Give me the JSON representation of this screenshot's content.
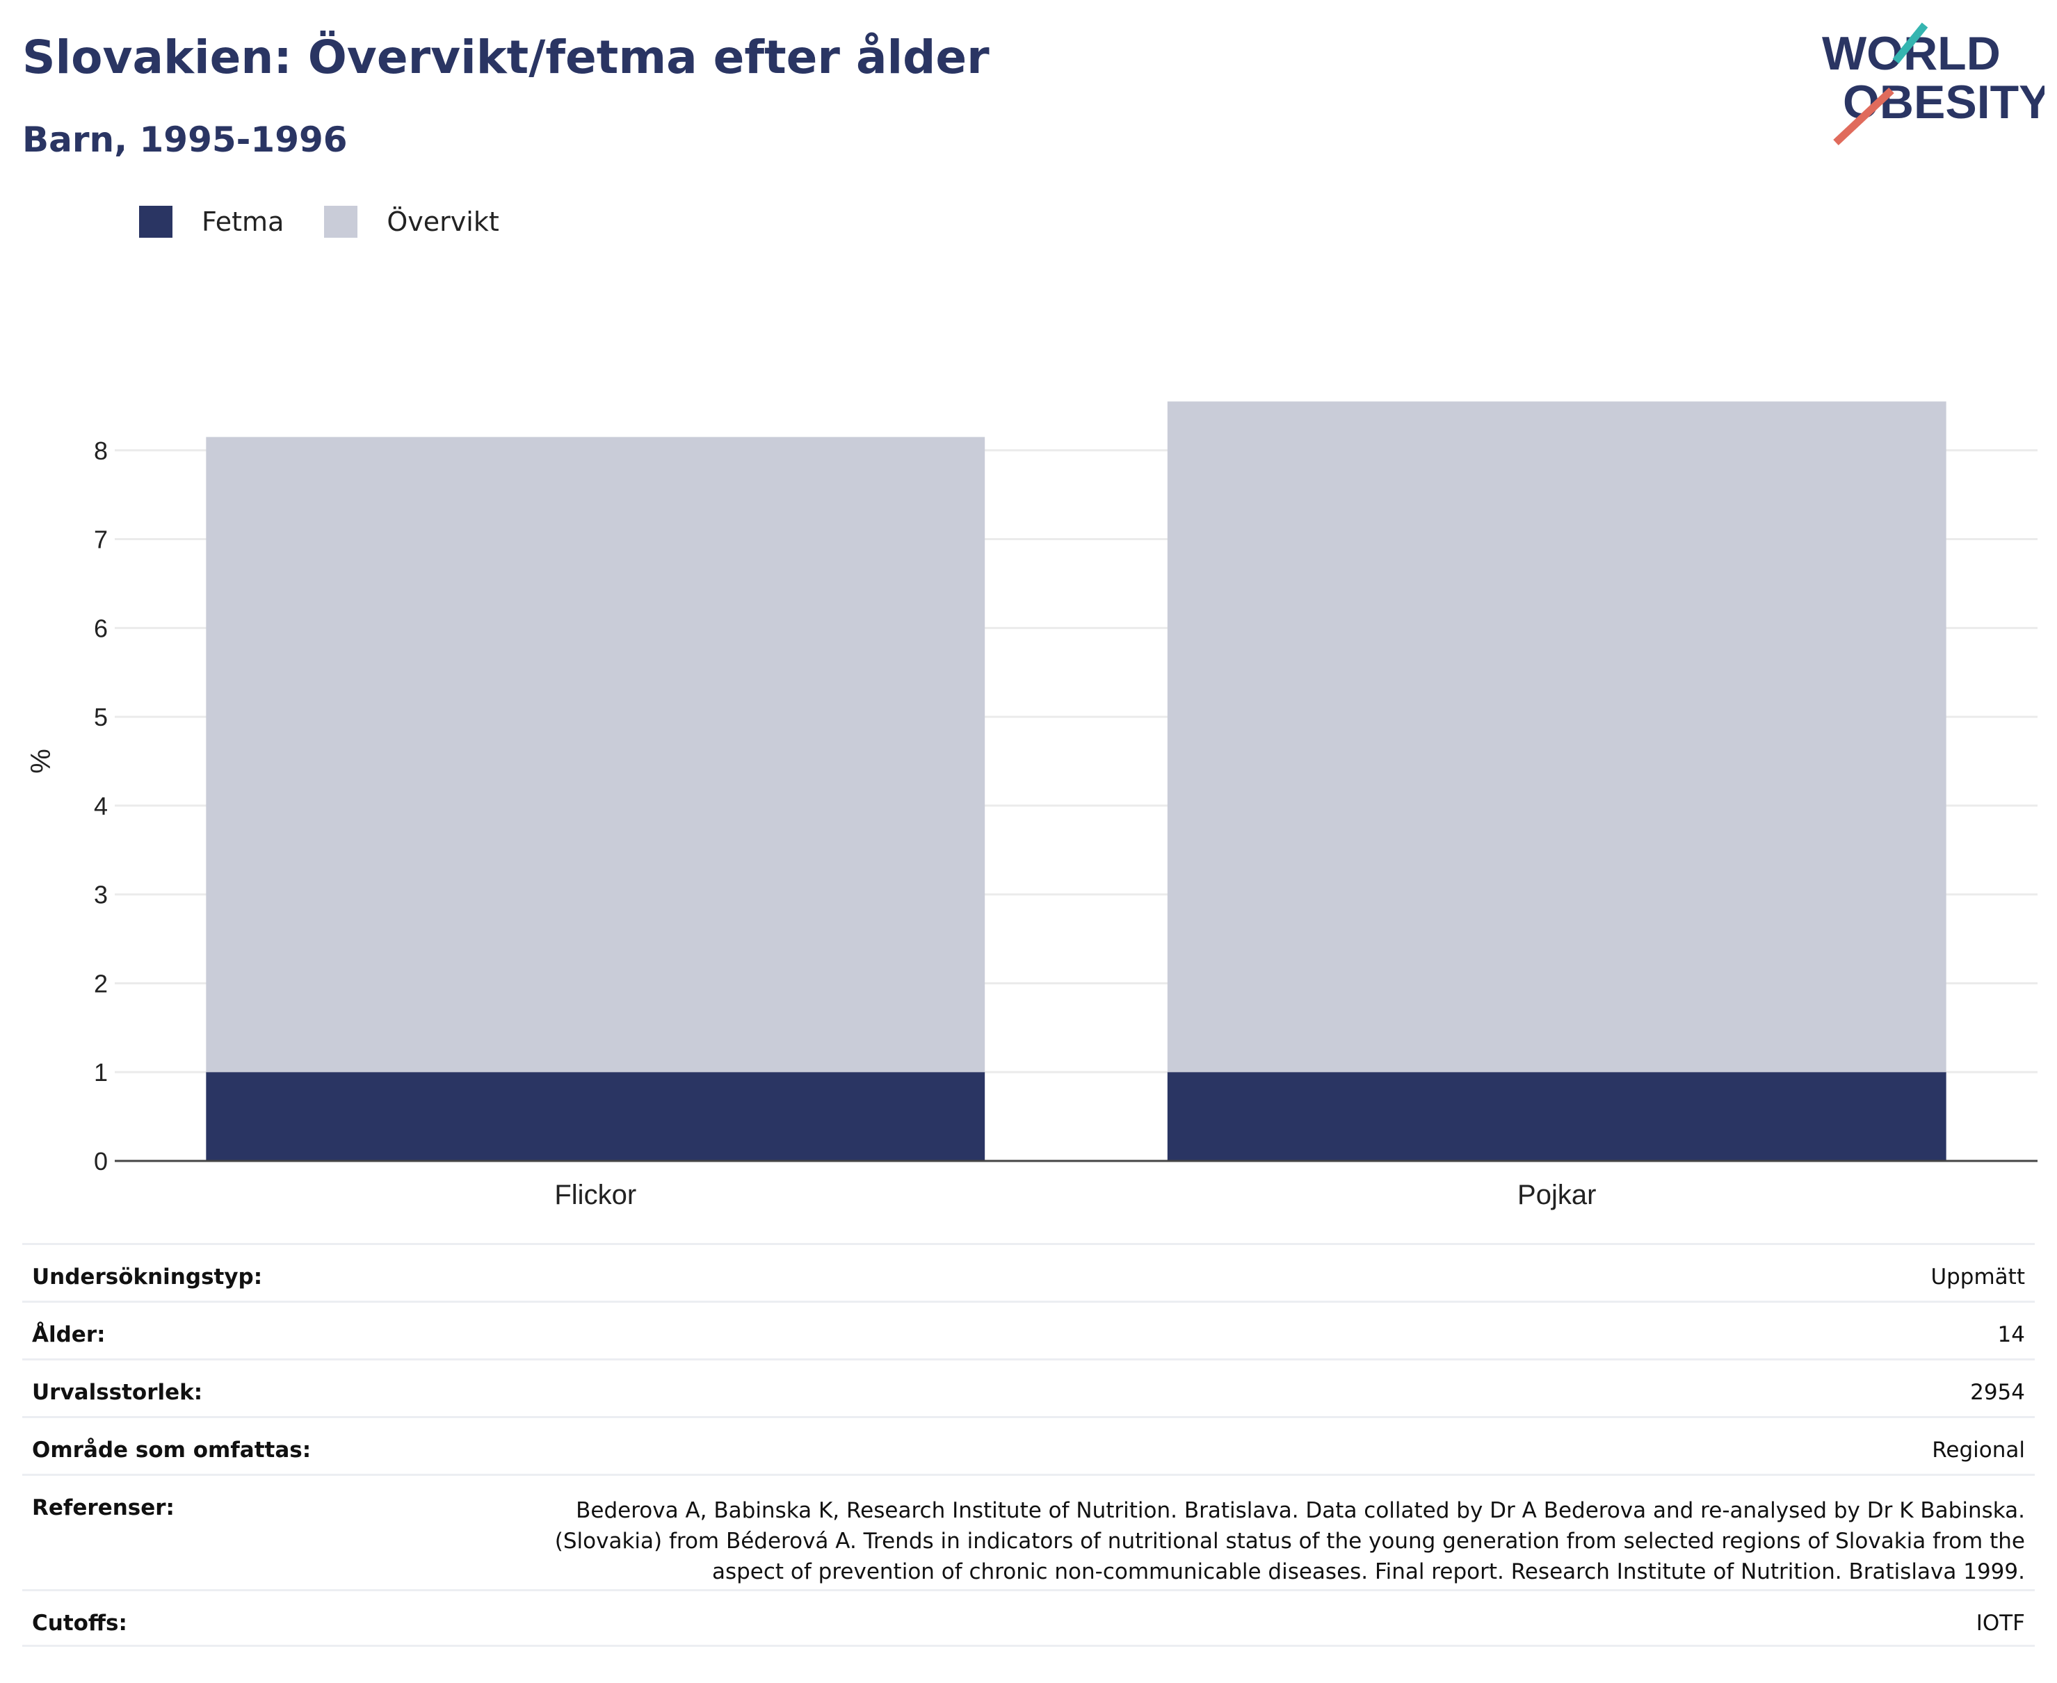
{
  "header": {
    "title": "Slovakien: Övervikt/fetma efter ålder",
    "subtitle": "Barn, 1995-1996"
  },
  "logo": {
    "line1": "WORLD",
    "line2": "OBESITY"
  },
  "legend": [
    {
      "label": "Fetma",
      "color": "#2a3563"
    },
    {
      "label": "Övervikt",
      "color": "#c9ccd8"
    }
  ],
  "chart_data": {
    "type": "bar",
    "stacked": true,
    "categories": [
      "Flickor",
      "Pojkar"
    ],
    "series": [
      {
        "name": "Fetma",
        "color": "#2a3563",
        "values": [
          1.0,
          1.0
        ]
      },
      {
        "name": "Övervikt",
        "color": "#c9ccd8",
        "values": [
          7.15,
          7.55
        ]
      }
    ],
    "ylabel": "%",
    "ylim": [
      0,
      9
    ],
    "yticks": [
      0,
      1,
      2,
      3,
      4,
      5,
      6,
      7,
      8
    ],
    "grid": true
  },
  "info": [
    {
      "key": "Undersökningstyp:",
      "value": "Uppmätt"
    },
    {
      "key": "Ålder:",
      "value": "14"
    },
    {
      "key": "Urvalsstorlek:",
      "value": "2954"
    },
    {
      "key": "Område som omfattas:",
      "value": "Regional"
    },
    {
      "key": "Referenser:",
      "value": "Bederova A, Babinska K, Research Institute of Nutrition. Bratislava. Data collated by Dr A Bederova and re-analysed by Dr K Babinska. (Slovakia) from Béderová A. Trends in indicators of nutritional status of the young generation from selected regions of Slovakia from the aspect of prevention of chronic non-communicable diseases. Final report. Research Institute of Nutrition. Bratislava 1999."
    },
    {
      "key": "Cutoffs:",
      "value": "IOTF"
    }
  ]
}
